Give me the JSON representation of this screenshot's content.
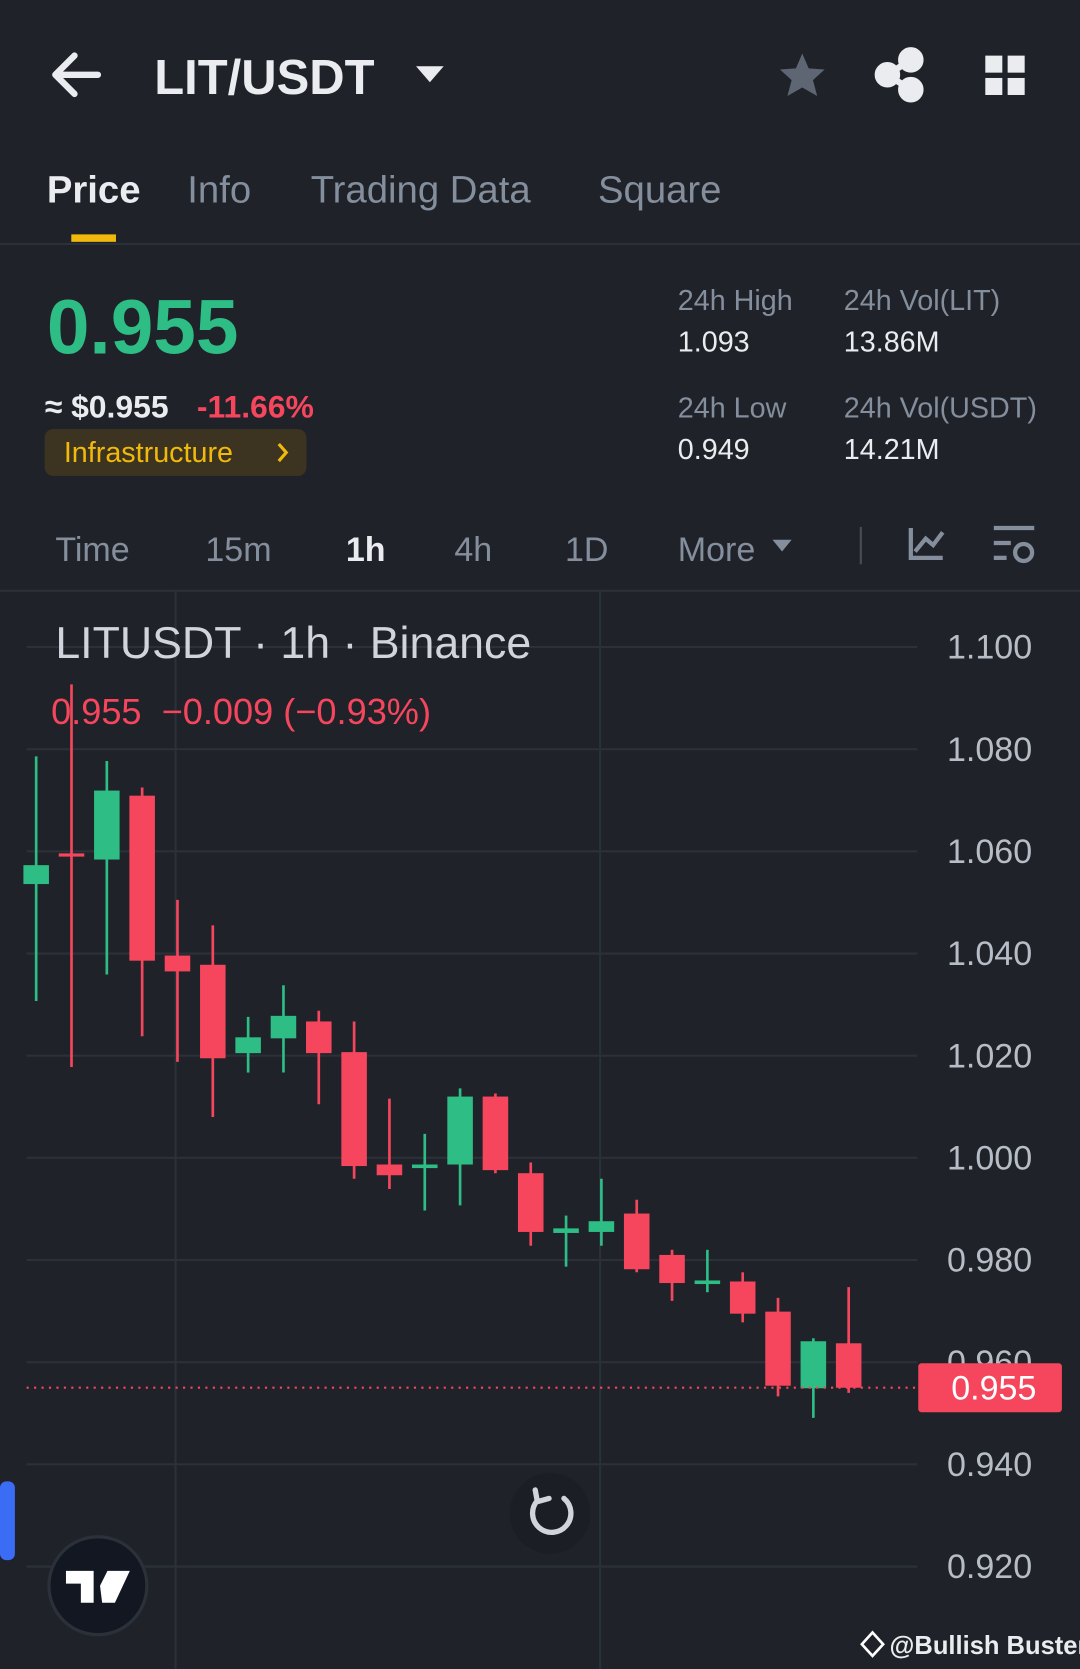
{
  "header": {
    "pair": "LIT/USDT"
  },
  "tabs": [
    "Price",
    "Info",
    "Trading Data",
    "Square"
  ],
  "ticker": {
    "price": "0.955",
    "usd_price": "≈ $0.955",
    "change": "-11.66%",
    "tag": "Infrastructure"
  },
  "stats": [
    {
      "label": "24h High",
      "value": "1.093"
    },
    {
      "label": "24h Vol(LIT)",
      "value": "13.86M"
    },
    {
      "label": "24h Low",
      "value": "0.949"
    },
    {
      "label": "24h Vol(USDT)",
      "value": "14.21M"
    }
  ],
  "intervals": [
    "Time",
    "15m",
    "1h",
    "4h",
    "1D",
    "More"
  ],
  "chart_data": {
    "type": "candlestick",
    "title": "LITUSDT · 1h · Binance",
    "legend": "0.955  −0.009 (−0.93%)",
    "categories": [
      null,
      null,
      null,
      null,
      null,
      null,
      null,
      null,
      null,
      null,
      null,
      null,
      null,
      null,
      null,
      null,
      null,
      null,
      null,
      null,
      null,
      null,
      null,
      null
    ],
    "open": [
      1.0536,
      1.0596,
      1.0584,
      1.0709,
      1.0396,
      1.0378,
      1.0205,
      1.0234,
      1.0267,
      1.0207,
      0.9987,
      0.998,
      0.9987,
      1.012,
      0.997,
      0.9853,
      0.9855,
      0.9891,
      0.981,
      0.9753,
      0.9758,
      0.9699,
      0.9549,
      0.9637
    ],
    "high": [
      1.0786,
      1.0927,
      1.0777,
      1.0725,
      1.0505,
      1.0455,
      1.0276,
      1.0338,
      1.0288,
      1.0267,
      1.0116,
      1.0047,
      1.0136,
      1.0126,
      0.9991,
      0.9887,
      0.9959,
      0.9918,
      0.982,
      0.982,
      0.9776,
      0.9726,
      0.9647,
      0.9747
    ],
    "low": [
      1.0307,
      1.0178,
      1.0359,
      1.0238,
      1.0188,
      1.008,
      1.0167,
      1.0167,
      1.0105,
      0.9959,
      0.9939,
      0.9897,
      0.9907,
      0.997,
      0.9828,
      0.9787,
      0.9828,
      0.9776,
      0.972,
      0.9737,
      0.9678,
      0.9533,
      0.9491,
      0.954
    ],
    "close": [
      1.0573,
      1.059,
      1.0719,
      1.0386,
      1.0365,
      1.0195,
      1.0236,
      1.0278,
      1.0205,
      0.9984,
      0.9966,
      0.9987,
      1.012,
      0.9976,
      0.9855,
      0.9862,
      0.9876,
      0.9782,
      0.9755,
      0.976,
      0.9695,
      0.9554,
      0.9641,
      0.955
    ],
    "up_color": "#2ebd85",
    "down_color": "#f6465d",
    "ylim": [
      0.9,
      1.111
    ],
    "yticks": [
      {
        "value": 1.1,
        "label": "1.100"
      },
      {
        "value": 1.08,
        "label": "1.080"
      },
      {
        "value": 1.06,
        "label": "1.060"
      },
      {
        "value": 1.04,
        "label": "1.040"
      },
      {
        "value": 1.02,
        "label": "1.020"
      },
      {
        "value": 1.0,
        "label": "1.000"
      },
      {
        "value": 0.98,
        "label": "0.980"
      },
      {
        "value": 0.96,
        "label": "0.960"
      },
      {
        "value": 0.94,
        "label": "0.940"
      },
      {
        "value": 0.92,
        "label": "0.920"
      }
    ],
    "grid": true,
    "last_price": {
      "value": 0.955,
      "label": "0.955"
    }
  },
  "watermark": "@Bullish Buster"
}
